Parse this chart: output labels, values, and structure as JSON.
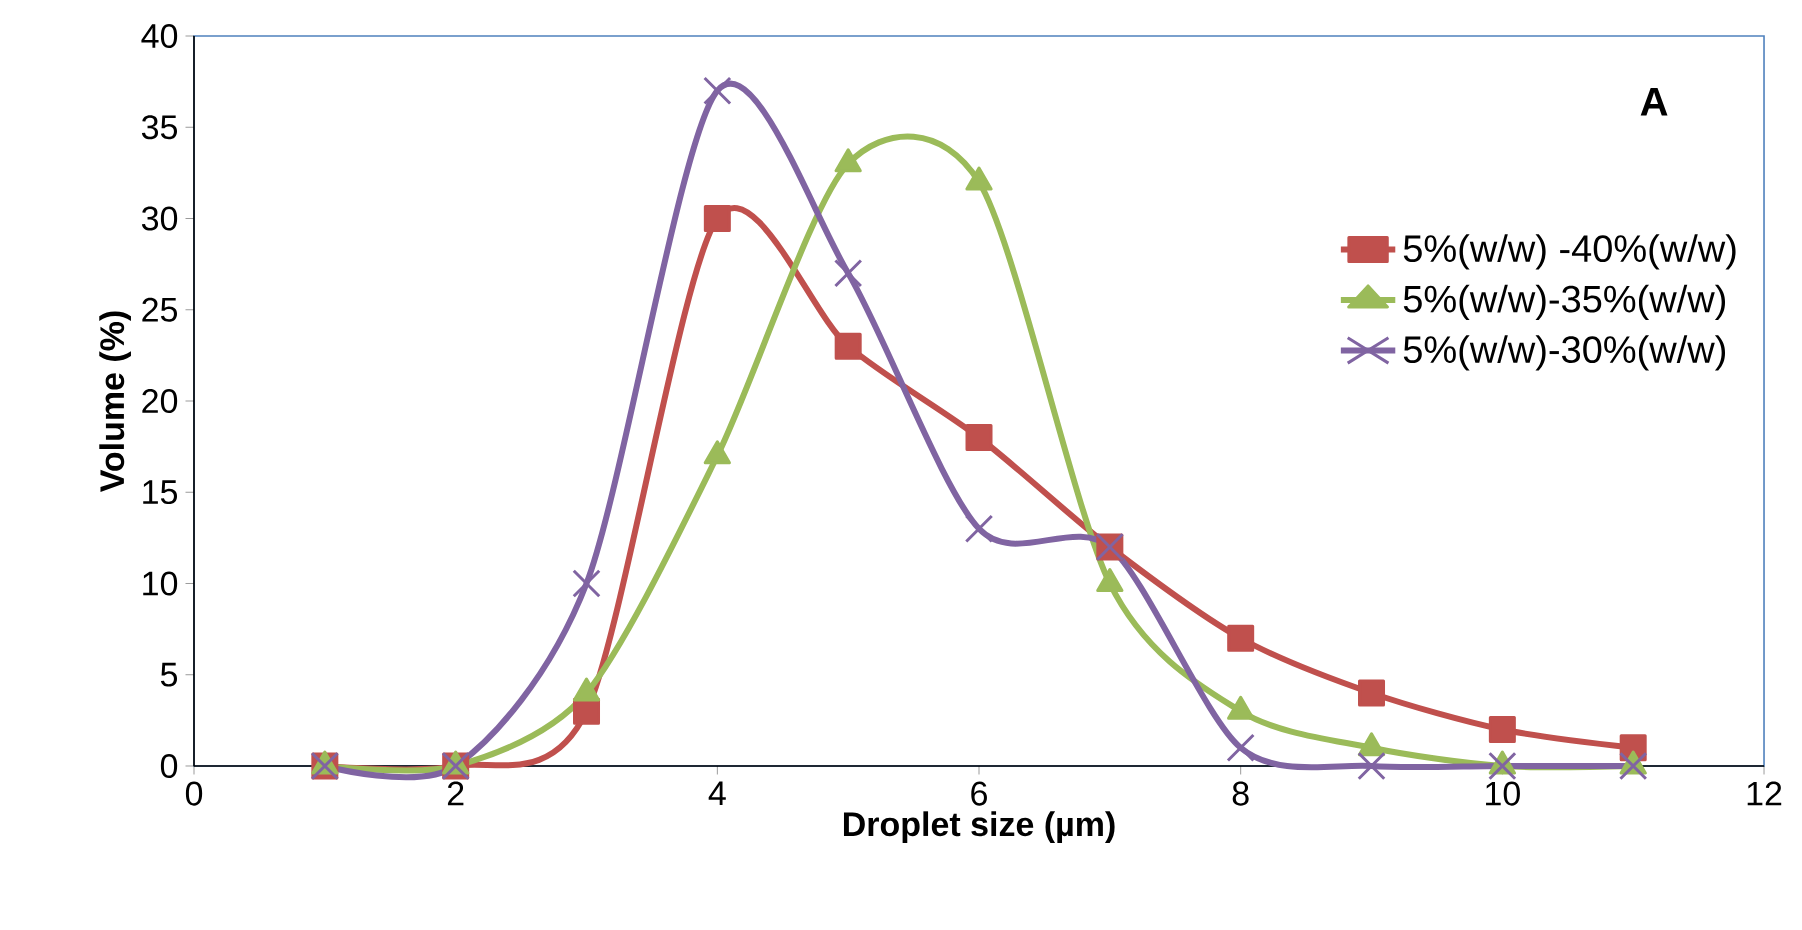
{
  "chart_data": {
    "type": "line",
    "xlabel": "Droplet size (µm)",
    "ylabel": "Volume (%)",
    "annotations": [
      "A"
    ],
    "x": [
      1,
      2,
      3,
      4,
      5,
      6,
      7,
      8,
      9,
      10,
      11
    ],
    "xlim": [
      0,
      12
    ],
    "xticks": [
      0,
      2,
      4,
      6,
      8,
      10,
      12
    ],
    "ylim": [
      0,
      40
    ],
    "yticks": [
      0,
      5,
      10,
      15,
      20,
      25,
      30,
      35,
      40
    ],
    "grid": false,
    "legend": "right",
    "series": [
      {
        "name": "5%(w/w) -40%(w/w)",
        "color": "#c0504d",
        "marker": "square",
        "values": [
          0,
          0,
          3,
          30,
          23,
          18,
          12,
          7,
          4,
          2,
          1
        ]
      },
      {
        "name": "5%(w/w)-35%(w/w)",
        "color": "#9bbb59",
        "marker": "triangle",
        "values": [
          0,
          0,
          4,
          17,
          33,
          32,
          10,
          3,
          1,
          0,
          0
        ]
      },
      {
        "name": "5%(w/w)-30%(w/w)",
        "color": "#8064a2",
        "marker": "cross",
        "values": [
          0,
          0,
          10,
          37,
          27,
          13,
          12,
          1,
          0,
          0,
          0
        ]
      }
    ]
  }
}
